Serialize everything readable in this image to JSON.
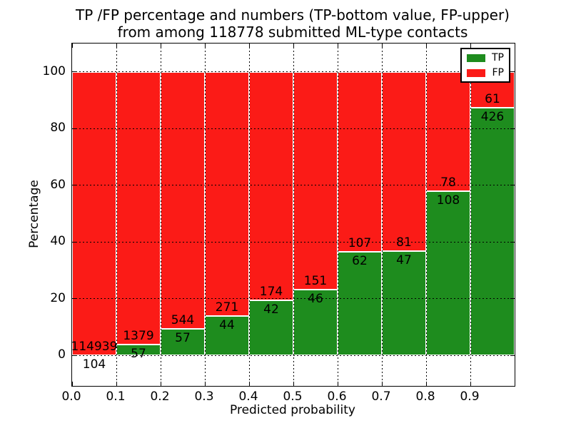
{
  "chart_data": {
    "type": "bar",
    "stacked": true,
    "title": "TP /FP percentage and numbers (TP-bottom value, FP-upper)",
    "subtitle": "from among 118778 submitted ML-type contacts",
    "total_submitted": 118778,
    "xlabel": "Predicted probability",
    "ylabel": "Percentage",
    "xlim": [
      0.0,
      1.0
    ],
    "ylim": [
      -10.7,
      110.0
    ],
    "xticklabels": [
      "0.0",
      "0.1",
      "0.2",
      "0.3",
      "0.4",
      "0.5",
      "0.6",
      "0.7",
      "0.8",
      "0.9"
    ],
    "yticks": [
      0,
      20,
      40,
      60,
      80,
      100
    ],
    "grid": true,
    "grid_style": "dotted",
    "bar_width": 0.1,
    "colors": {
      "tp": "#1e8c1e",
      "fp": "#fb1b17"
    },
    "legend": {
      "position": "upper right",
      "entries": [
        {
          "label": "TP",
          "color": "#1e8c1e"
        },
        {
          "label": "FP",
          "color": "#fb1b17"
        }
      ]
    },
    "bins": [
      {
        "range": [
          0.0,
          0.1
        ],
        "tp_count": 104,
        "fp_count": 114939,
        "tp_percent": 0.09,
        "fp_percent": 99.91
      },
      {
        "range": [
          0.1,
          0.2
        ],
        "tp_count": 57,
        "fp_count": 1379,
        "tp_percent": 3.97,
        "fp_percent": 96.03
      },
      {
        "range": [
          0.2,
          0.3
        ],
        "tp_count": 57,
        "fp_count": 544,
        "tp_percent": 9.48,
        "fp_percent": 90.52
      },
      {
        "range": [
          0.3,
          0.4
        ],
        "tp_count": 44,
        "fp_count": 271,
        "tp_percent": 13.97,
        "fp_percent": 86.03
      },
      {
        "range": [
          0.4,
          0.5
        ],
        "tp_count": 42,
        "fp_count": 174,
        "tp_percent": 19.44,
        "fp_percent": 80.56
      },
      {
        "range": [
          0.5,
          0.6
        ],
        "tp_count": 46,
        "fp_count": 151,
        "tp_percent": 23.35,
        "fp_percent": 76.65
      },
      {
        "range": [
          0.6,
          0.7
        ],
        "tp_count": 62,
        "fp_count": 107,
        "tp_percent": 36.69,
        "fp_percent": 63.31
      },
      {
        "range": [
          0.7,
          0.8
        ],
        "tp_count": 47,
        "fp_count": 81,
        "tp_percent": 36.72,
        "fp_percent": 63.28
      },
      {
        "range": [
          0.8,
          0.9
        ],
        "tp_count": 108,
        "fp_count": 78,
        "tp_percent": 58.06,
        "fp_percent": 41.94
      },
      {
        "range": [
          0.9,
          1.0
        ],
        "tp_count": 426,
        "fp_count": 61,
        "tp_percent": 87.47,
        "fp_percent": 12.53
      }
    ]
  }
}
